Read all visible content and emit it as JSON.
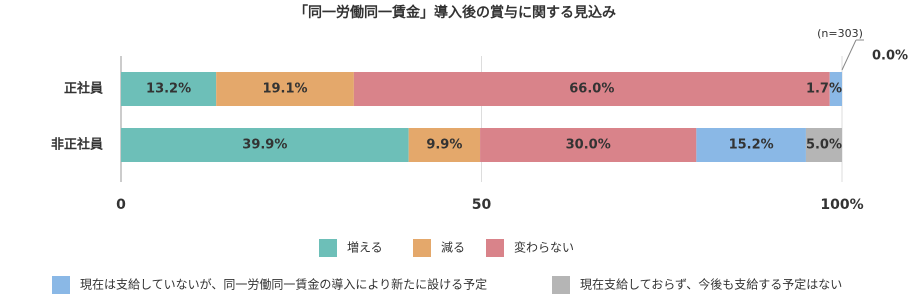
{
  "chart_data": {
    "type": "stacked-barh",
    "title": "「同一労働同一賃金」導入後の賞与に関する見込み",
    "note": "(n=303)",
    "categories": [
      "正社員",
      "非正社員"
    ],
    "series": [
      {
        "name": "増える",
        "color": "#6dbfb8",
        "values": [
          13.2,
          39.9
        ],
        "value_labels": [
          "13.2%",
          "39.9%"
        ]
      },
      {
        "name": "減る",
        "color": "#e4a86b",
        "values": [
          19.1,
          9.9
        ],
        "value_labels": [
          "19.1%",
          "9.9%"
        ]
      },
      {
        "name": "変わらない",
        "color": "#d9838a",
        "values": [
          66.0,
          30.0
        ],
        "value_labels": [
          "66.0%",
          "30.0%"
        ]
      },
      {
        "name": "現在は支給していないが、同一労働同一賃金の導入により新たに設ける予定",
        "color": "#8ab8e6",
        "values": [
          1.7,
          15.2
        ],
        "value_labels": [
          "1.7%",
          "15.2%"
        ]
      },
      {
        "name": "現在支給しておらず、今後も支給する予定はない",
        "color": "#b5b5b5",
        "values": [
          0.0,
          5.0
        ],
        "value_labels": [
          "0.0%",
          "5.0%"
        ]
      }
    ],
    "xlim": [
      0,
      100
    ],
    "xticks": [
      0,
      50,
      {
        "value": 100,
        "label": "100%"
      }
    ],
    "grid": true,
    "legend": "bottom"
  }
}
